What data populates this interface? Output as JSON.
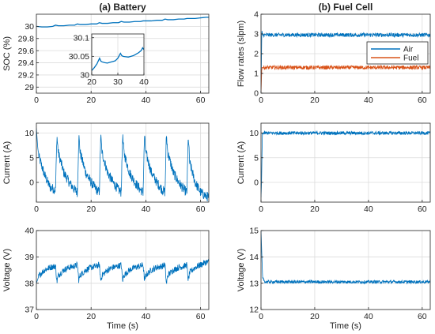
{
  "chart_data": [
    {
      "id": "batt_soc",
      "type": "line",
      "title": "(a) Battery",
      "xlabel": "",
      "ylabel": "SOC (%)",
      "xlim": [
        0,
        63
      ],
      "ylim": [
        28.9,
        30.2
      ],
      "xticks": [
        0,
        20,
        40,
        60
      ],
      "yticks": [
        29,
        29.2,
        29.4,
        29.6,
        29.8,
        30
      ],
      "series": [
        {
          "color": "#0072BD",
          "x": [
            0,
            2,
            4,
            6,
            7,
            8,
            10,
            12,
            14,
            15,
            16,
            18,
            20,
            22,
            23,
            24,
            26,
            28,
            30,
            31,
            32,
            34,
            36,
            38,
            39,
            40,
            42,
            44,
            46,
            47,
            48,
            50,
            52,
            54,
            55,
            56,
            58,
            60,
            62,
            63
          ],
          "y": [
            30.0,
            29.99,
            29.99,
            30.0,
            30.02,
            30.01,
            30.01,
            30.02,
            30.02,
            30.04,
            30.03,
            30.03,
            30.04,
            30.04,
            30.06,
            30.05,
            30.05,
            30.06,
            30.06,
            30.08,
            30.07,
            30.07,
            30.08,
            30.08,
            30.09,
            30.09,
            30.09,
            30.1,
            30.1,
            30.12,
            30.11,
            30.11,
            30.12,
            30.12,
            30.13,
            30.13,
            30.13,
            30.14,
            30.15,
            30.15
          ]
        }
      ]
    },
    {
      "id": "batt_soc_inset",
      "type": "line",
      "title": "",
      "xlabel": "",
      "ylabel": "",
      "xlim": [
        20,
        40
      ],
      "ylim": [
        30,
        30.11
      ],
      "xticks": [
        20,
        30,
        40
      ],
      "yticks": [
        30,
        30.05,
        30.1
      ],
      "series": [
        {
          "color": "#0072BD",
          "x": [
            20,
            21,
            22,
            23,
            23.5,
            24,
            25,
            26,
            27,
            28,
            29,
            30,
            31,
            31.5,
            32,
            33,
            34,
            35,
            36,
            37,
            38,
            39,
            39.5,
            40
          ],
          "y": [
            30.012,
            30.02,
            30.03,
            30.045,
            30.037,
            30.035,
            30.033,
            30.032,
            30.034,
            30.036,
            30.038,
            30.045,
            30.058,
            30.052,
            30.05,
            30.049,
            30.048,
            30.05,
            30.052,
            30.056,
            30.06,
            30.066,
            30.073,
            30.068
          ]
        }
      ]
    },
    {
      "id": "batt_current",
      "type": "line",
      "title": "",
      "xlabel": "",
      "ylabel": "Current (A)",
      "xlim": [
        0,
        63
      ],
      "ylim": [
        -4,
        12
      ],
      "xticks": [
        0,
        20,
        40,
        60
      ],
      "yticks": [
        0,
        5,
        10
      ],
      "series": [
        {
          "color": "#0072BD",
          "noise": 1.0,
          "x": [
            0,
            0.5,
            1,
            3,
            5,
            7,
            7.5,
            8,
            10,
            12,
            14,
            15,
            15.5,
            16,
            18,
            20,
            22,
            23,
            23.5,
            24,
            26,
            28,
            30,
            31,
            31.5,
            32,
            34,
            36,
            38,
            39,
            39.5,
            40,
            42,
            44,
            46,
            47,
            47.5,
            48,
            50,
            52,
            54,
            55,
            55.5,
            56,
            58,
            60,
            62,
            63
          ],
          "y": [
            11,
            7,
            5,
            1.5,
            -1,
            -1.5,
            9.5,
            6,
            2,
            0,
            -1.5,
            -2,
            9.5,
            6,
            2,
            0,
            -1.5,
            -2,
            9.5,
            6,
            2,
            0,
            -1.5,
            -2,
            9.5,
            6,
            2,
            0,
            -1.5,
            -2,
            9.5,
            6,
            2,
            0,
            -1.5,
            -2,
            9.8,
            6,
            2,
            0,
            -1.5,
            -2,
            9.5,
            4,
            0,
            -2,
            -2.8,
            -3
          ]
        }
      ]
    },
    {
      "id": "batt_voltage",
      "type": "line",
      "title": "",
      "xlabel": "Time (s)",
      "ylabel": "Voltage (V)",
      "xlim": [
        0,
        63
      ],
      "ylim": [
        37,
        40
      ],
      "xticks": [
        0,
        20,
        40,
        60
      ],
      "yticks": [
        37,
        38,
        39,
        40
      ],
      "series": [
        {
          "color": "#0072BD",
          "noise": 0.12,
          "x": [
            0,
            1,
            3,
            5,
            7,
            7.5,
            8,
            10,
            12,
            14,
            15,
            15.5,
            16,
            18,
            20,
            22,
            23,
            23.5,
            24,
            26,
            28,
            30,
            31,
            31.5,
            32,
            34,
            36,
            38,
            39,
            39.5,
            40,
            42,
            44,
            46,
            47,
            47.5,
            48,
            50,
            52,
            54,
            55,
            55.5,
            56,
            58,
            60,
            62,
            63
          ],
          "y": [
            38.0,
            38.3,
            38.5,
            38.6,
            38.65,
            38.05,
            38.3,
            38.5,
            38.6,
            38.65,
            38.7,
            38.1,
            38.3,
            38.5,
            38.6,
            38.65,
            38.7,
            38.1,
            38.3,
            38.5,
            38.6,
            38.65,
            38.7,
            38.1,
            38.3,
            38.5,
            38.6,
            38.65,
            38.7,
            38.1,
            38.3,
            38.5,
            38.6,
            38.65,
            38.7,
            37.95,
            38.3,
            38.5,
            38.6,
            38.65,
            38.7,
            38.1,
            38.4,
            38.6,
            38.7,
            38.8,
            38.8
          ]
        }
      ]
    },
    {
      "id": "fc_flow",
      "type": "line",
      "title": "(b) Fuel Cell",
      "xlabel": "",
      "ylabel": "Flow rates (slpm)",
      "xlim": [
        0,
        63
      ],
      "ylim": [
        0,
        4
      ],
      "xticks": [
        0,
        20,
        40,
        60
      ],
      "yticks": [
        0,
        1,
        2,
        3,
        4
      ],
      "legend": "top-right",
      "series": [
        {
          "name": "Air",
          "color": "#0072BD",
          "noise": 0.1,
          "x": [
            0,
            0.3,
            0.6,
            63
          ],
          "y": [
            0,
            3.2,
            2.95,
            2.95
          ]
        },
        {
          "name": "Fuel",
          "color": "#D95319",
          "noise": 0.1,
          "x": [
            0,
            0.3,
            0.6,
            63
          ],
          "y": [
            0,
            1.3,
            1.3,
            1.3
          ]
        }
      ]
    },
    {
      "id": "fc_current",
      "type": "line",
      "title": "",
      "xlabel": "",
      "ylabel": "Current (A)",
      "xlim": [
        0,
        63
      ],
      "ylim": [
        -4,
        12
      ],
      "xticks": [
        0,
        20,
        40,
        60
      ],
      "yticks": [
        0,
        5,
        10
      ],
      "series": [
        {
          "color": "#0072BD",
          "noise": 0.35,
          "x": [
            0,
            0.2,
            0.5,
            63
          ],
          "y": [
            -3,
            0,
            10,
            10
          ]
        }
      ]
    },
    {
      "id": "fc_voltage",
      "type": "line",
      "title": "",
      "xlabel": "Time (s)",
      "ylabel": "Voltage (V)",
      "xlim": [
        0,
        63
      ],
      "ylim": [
        12,
        15
      ],
      "xticks": [
        0,
        20,
        40,
        60
      ],
      "yticks": [
        12,
        13,
        14,
        15
      ],
      "series": [
        {
          "color": "#0072BD",
          "noise": 0.06,
          "x": [
            0,
            0.3,
            0.6,
            1.5,
            63
          ],
          "y": [
            15,
            14.1,
            13.2,
            13.05,
            13.05
          ]
        }
      ]
    }
  ]
}
